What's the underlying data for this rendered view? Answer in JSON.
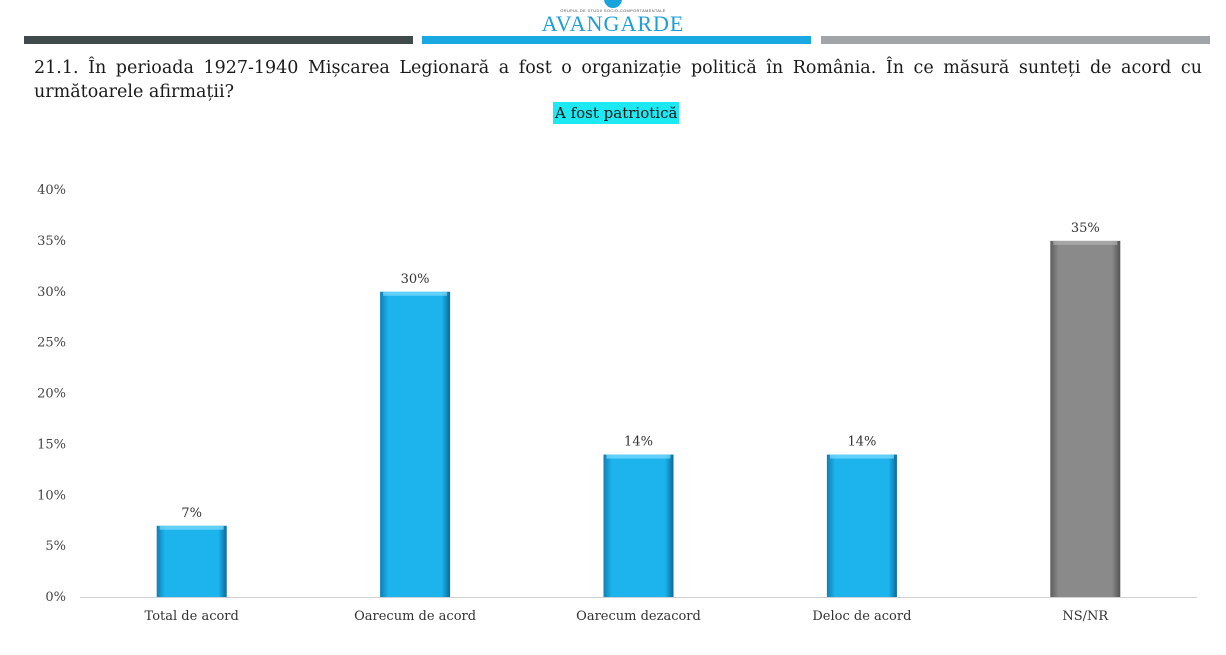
{
  "header": {
    "logo_small_text": "GRUPUL DE STUDII SOCIO-COMPORTAMENTALE",
    "logo_text": "AVANGARDE",
    "band_colors": [
      "#3f4a4b",
      "#1aa8e0",
      "#a1a5a8"
    ]
  },
  "question": "21.1. În perioada 1927-1940 Mișcarea Legionară a fost o organizație politică în România. În ce măsură sunteți de acord cu următoarele afirmații?",
  "chart_data": {
    "type": "bar",
    "title": "A fost patriotică",
    "categories": [
      "Total de acord",
      "Oarecum de acord",
      "Oarecum dezacord",
      "Deloc de acord",
      "NS/NR"
    ],
    "values": [
      7,
      30,
      14,
      14,
      35
    ],
    "data_labels": [
      "7%",
      "30%",
      "14%",
      "14%",
      "35%"
    ],
    "ylim": [
      0,
      40
    ],
    "yticks": [
      "0%",
      "5%",
      "10%",
      "15%",
      "20%",
      "25%",
      "30%",
      "35%",
      "40%"
    ],
    "ytick_values": [
      0,
      5,
      10,
      15,
      20,
      25,
      30,
      35,
      40
    ],
    "grid": false,
    "colors": [
      "#1db4ee",
      "#1db4ee",
      "#1db4ee",
      "#1db4ee",
      "#8a8a8a"
    ],
    "xlabel": "",
    "ylabel": ""
  }
}
